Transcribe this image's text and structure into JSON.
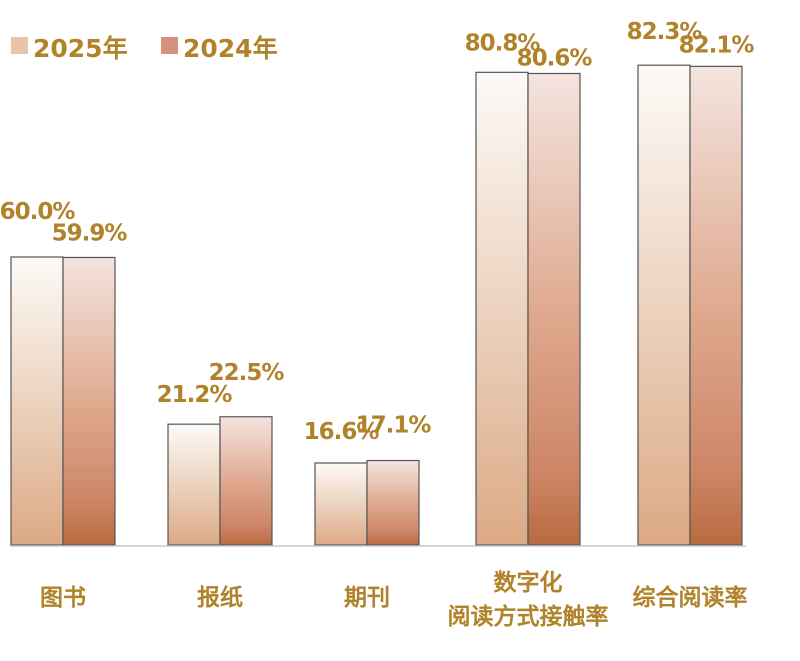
{
  "chart_data": {
    "type": "bar",
    "categories": [
      "图书",
      "报纸",
      "期刊",
      "数字化\n阅读方式接触率",
      "综合阅读率"
    ],
    "series": [
      {
        "name": "2025年",
        "values": [
          60.0,
          21.2,
          16.6,
          80.8,
          82.3
        ],
        "labels": [
          "60.0%",
          "21.2%",
          "16.6%",
          "80.8%",
          "82.3%"
        ]
      },
      {
        "name": "2024年",
        "values": [
          59.9,
          22.5,
          17.1,
          80.6,
          82.1
        ],
        "labels": [
          "59.9%",
          "22.5%",
          "17.1%",
          "80.6%",
          "82.1%"
        ]
      }
    ],
    "unit": "%",
    "legend_position": "top-left",
    "grid": false,
    "colors": {
      "2025": {
        "top": "#fdfaf7",
        "bottom": "#dca985",
        "legend": "#e8c4aa"
      },
      "2024": {
        "top": "#f4e4df",
        "bottom": "#b96a40",
        "legend": "#d4927c"
      },
      "text": "#b0832a"
    }
  }
}
